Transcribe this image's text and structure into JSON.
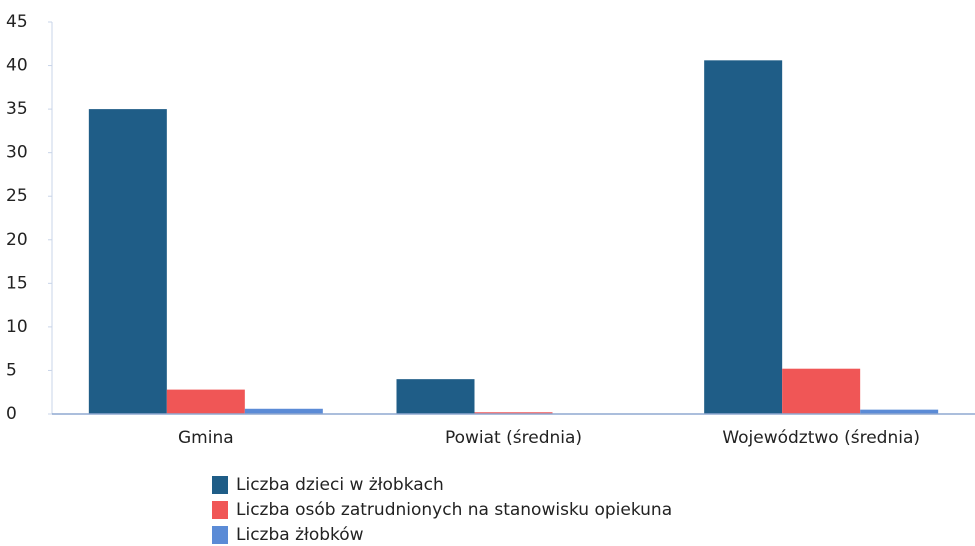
{
  "chart_data": {
    "type": "bar",
    "categories": [
      "Gmina",
      "Powiat (średnia)",
      "Województwo (średnia)"
    ],
    "series": [
      {
        "name": "Liczba dzieci w żłobkach",
        "color": "#1f5d87",
        "values": [
          35,
          4,
          40.6
        ]
      },
      {
        "name": "Liczba osób zatrudnionych na stanowisku opiekuna",
        "color": "#f05656",
        "values": [
          2.8,
          0.2,
          5.2
        ]
      },
      {
        "name": "Liczba żłobków",
        "color": "#5b8bd6",
        "values": [
          0.6,
          0,
          0.5
        ]
      }
    ],
    "ylim": [
      0,
      45
    ],
    "yticks": [
      0,
      5,
      10,
      15,
      20,
      25,
      30,
      35,
      40,
      45
    ],
    "grid": false,
    "legend": "bottom"
  }
}
